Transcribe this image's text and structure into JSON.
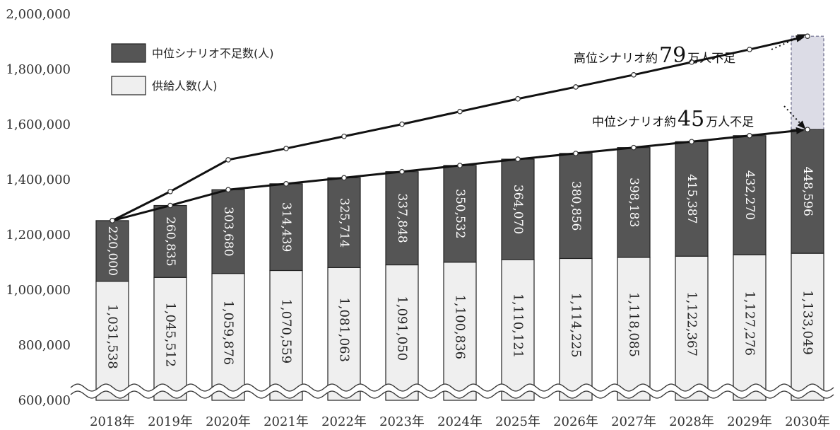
{
  "chart_data": {
    "type": "bar",
    "stacked": true,
    "categories": [
      "2018年",
      "2019年",
      "2020年",
      "2021年",
      "2022年",
      "2023年",
      "2024年",
      "2025年",
      "2026年",
      "2027年",
      "2028年",
      "2029年",
      "2030年"
    ],
    "series": [
      {
        "name": "供給人数(人)",
        "values": [
          1031538,
          1045512,
          1059876,
          1070559,
          1081063,
          1091050,
          1100836,
          1110121,
          1114225,
          1118085,
          1122367,
          1127276,
          1133049
        ],
        "labels": [
          "1,031,538",
          "1,045,512",
          "1,059,876",
          "1,070,559",
          "1,081,063",
          "1,091,050",
          "1,100,836",
          "1,110,121",
          "1,114,225",
          "1,118,085",
          "1,122,367",
          "1,127,276",
          "1,133,049"
        ],
        "color": "#efefef"
      },
      {
        "name": "中位シナリオ不足数(人)",
        "values": [
          220000,
          260835,
          303680,
          314439,
          325714,
          337848,
          350532,
          364070,
          380856,
          398183,
          415387,
          432270,
          448596
        ],
        "labels": [
          "220,000",
          "260,835",
          "303,680",
          "314,439",
          "325,714",
          "337,848",
          "350,532",
          "364,070",
          "380,856",
          "398,183",
          "415,387",
          "432,270",
          "448,596"
        ],
        "color": "#555555"
      }
    ],
    "lines": [
      {
        "values": [
          1251538,
          1306347,
          1363556,
          1384998,
          1406777,
          1428898,
          1451368,
          1474191,
          1495081,
          1516268,
          1537754,
          1559546,
          1581645
        ]
      },
      {
        "values": [
          1251538,
          1357000,
          1472000,
          1513000,
          1557000,
          1601000,
          1647000,
          1693000,
          1736000,
          1780000,
          1826000,
          1872000,
          1920000
        ]
      }
    ],
    "gap_box": {
      "category": "2030年",
      "from": 1581645,
      "to": 1920000,
      "color": "#dcdce6"
    },
    "annotations": [
      {
        "prefix": "高位シナリオ約",
        "number": "79",
        "suffix": "万人不足"
      },
      {
        "prefix": "中位シナリオ約",
        "number": "45",
        "suffix": "万人不足"
      }
    ],
    "yticks": [
      "600,000",
      "800,000",
      "1,000,000",
      "1,200,000",
      "1,400,000",
      "1,600,000",
      "1,800,000",
      "2,000,000"
    ],
    "ytick_values": [
      600000,
      800000,
      1000000,
      1200000,
      1400000,
      1600000,
      1800000,
      2000000
    ],
    "ylim": [
      600000,
      2000000
    ],
    "axis_break": true,
    "grid": false,
    "legend_position": "top-left",
    "title": "",
    "xlabel": "",
    "ylabel": ""
  }
}
